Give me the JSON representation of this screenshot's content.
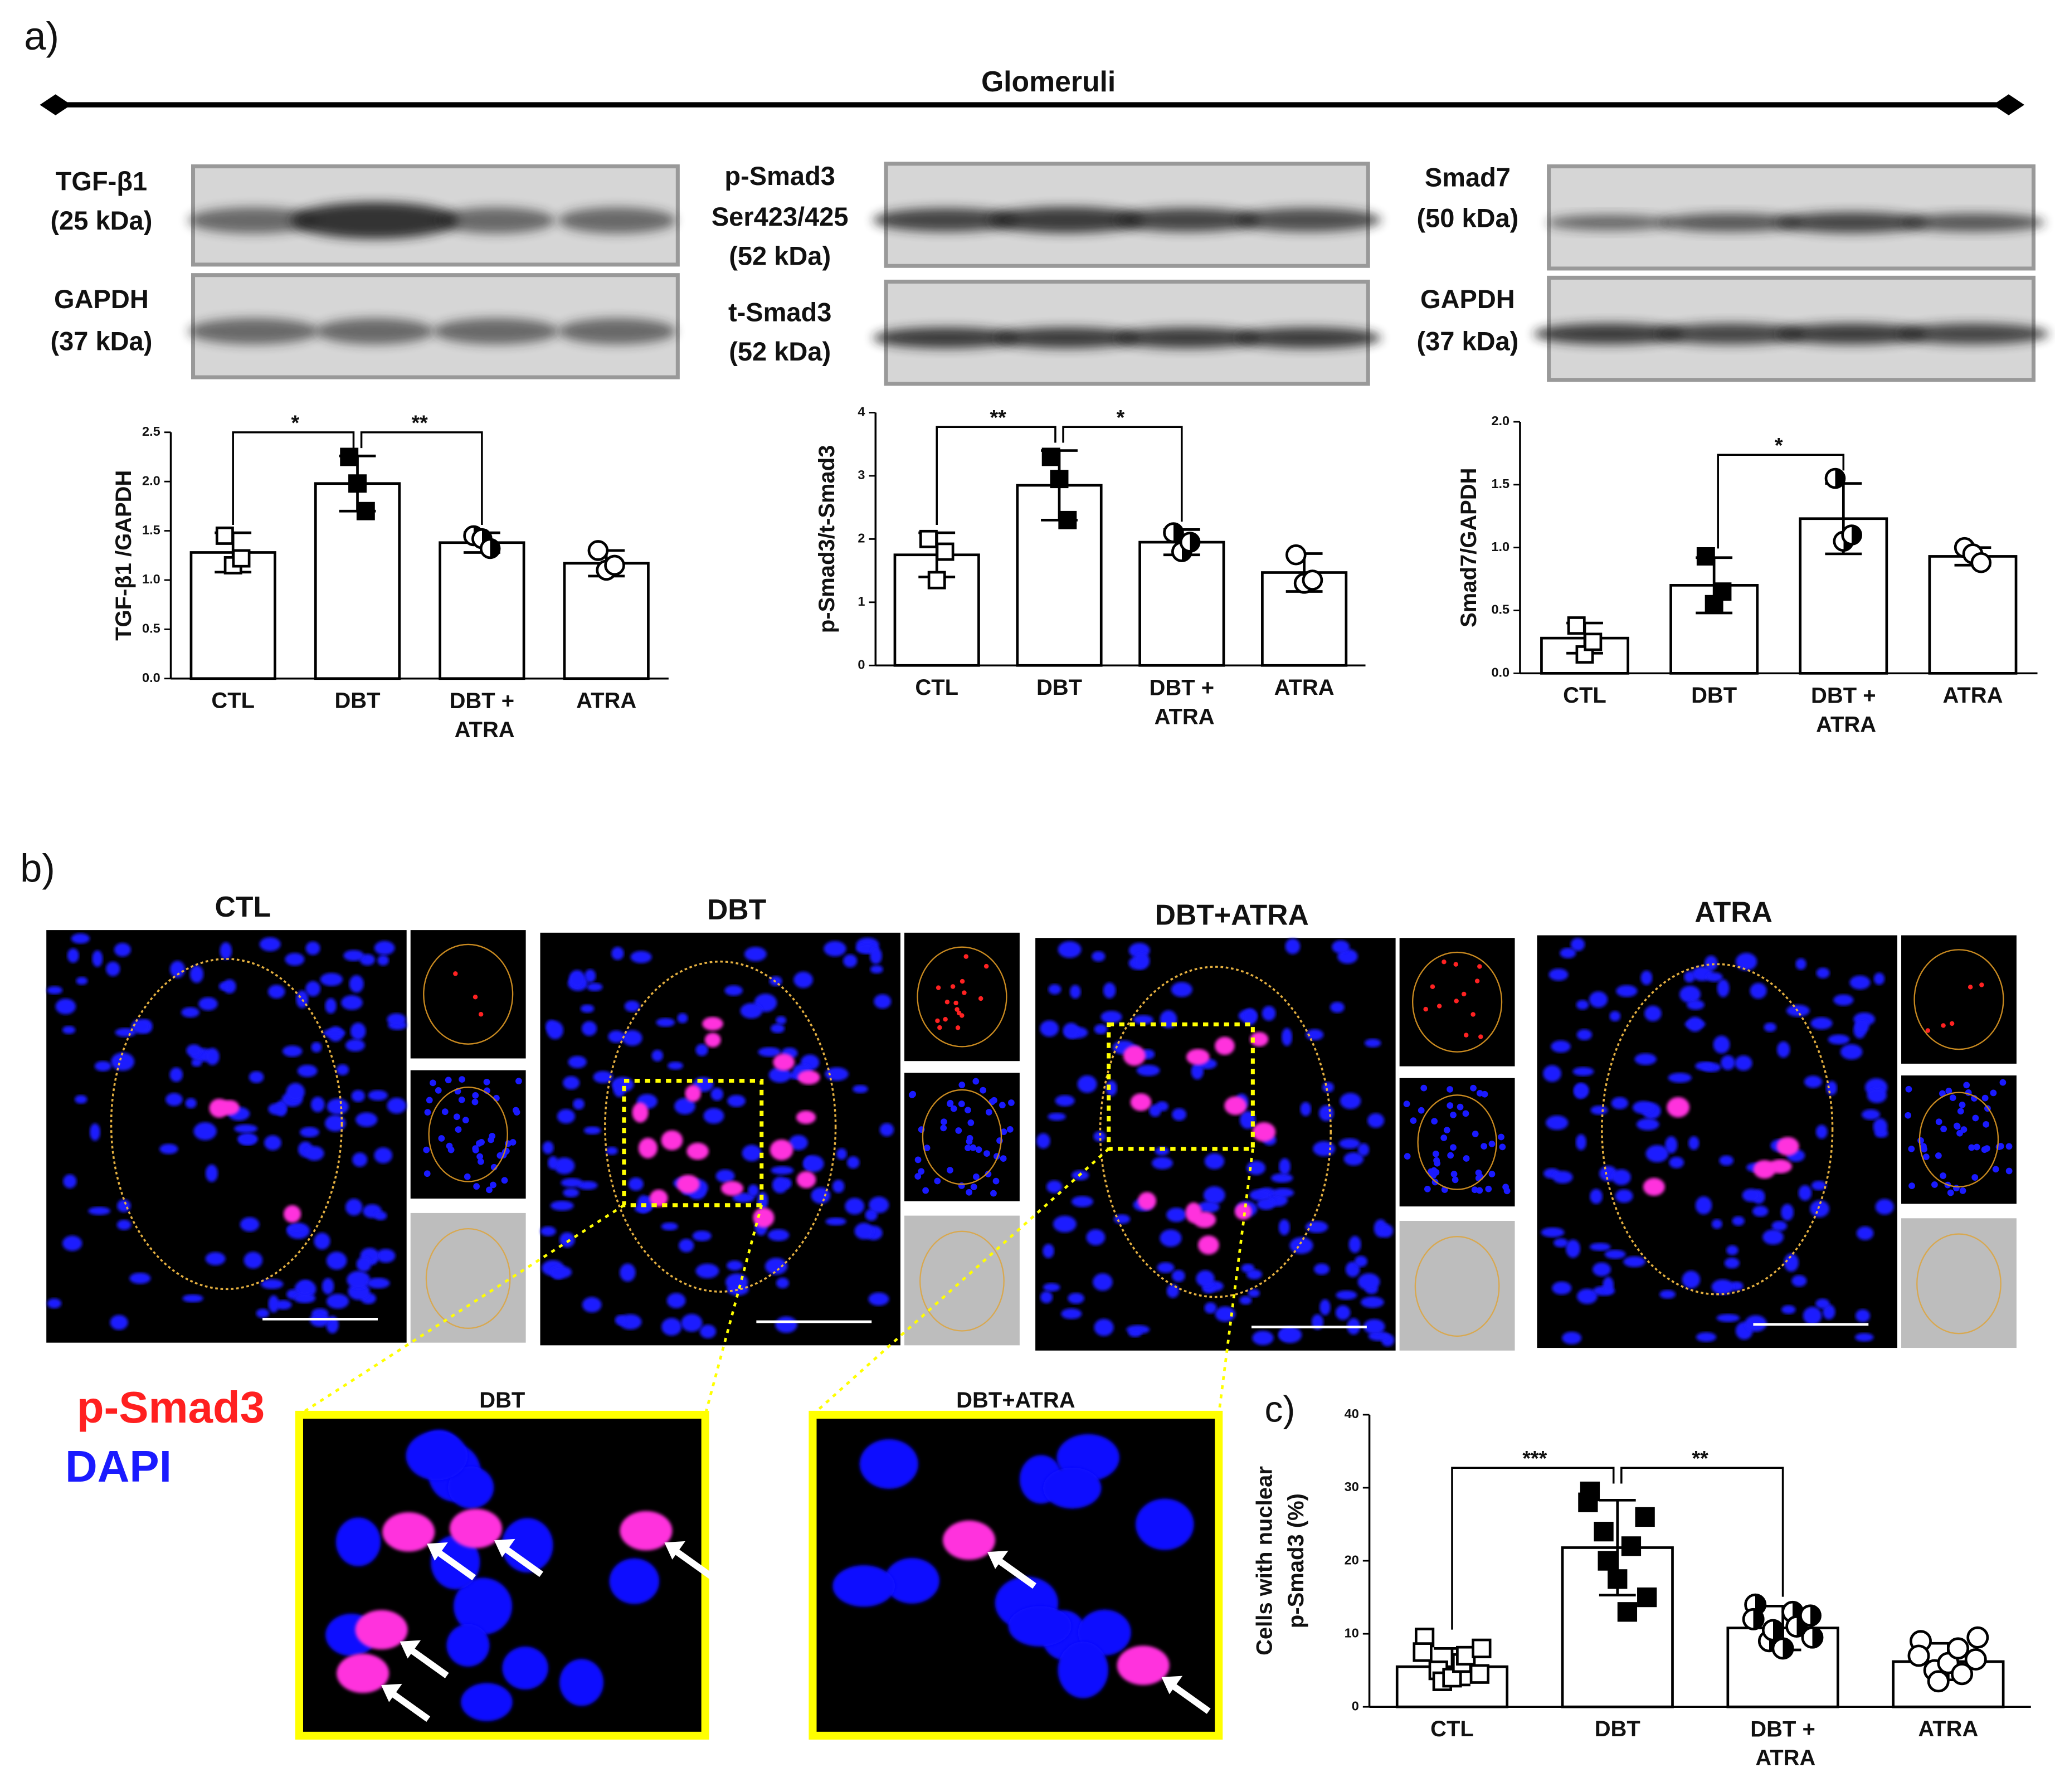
{
  "figure": {
    "panel_a": "a)",
    "panel_b": "b)",
    "header": "Glomeruli",
    "blots": [
      {
        "lines": [
          "TGF-β1",
          "(25 kDa)"
        ]
      },
      {
        "lines": [
          "GAPDH",
          "(37 kDa)"
        ]
      },
      {
        "lines": [
          "p-Smad3",
          "Ser423/425",
          "(52 kDa)"
        ]
      },
      {
        "lines": [
          "t-Smad3",
          "(52 kDa)"
        ]
      },
      {
        "lines": [
          "Smad7",
          "(50 kDa)"
        ]
      },
      {
        "lines": [
          "GAPDH",
          "(37 kDa)"
        ]
      }
    ],
    "image_titles": [
      "CTL",
      "DBT",
      "DBT+ATRA",
      "ATRA"
    ],
    "legend": [
      "p-Smad3",
      "DAPI"
    ],
    "zoom_titles": [
      "DBT",
      "DBT+ATRA"
    ]
  },
  "chart_data": [
    {
      "type": "bar",
      "ylabel": [
        "TGF-β1 /GAPDH"
      ],
      "categories": [
        "CTL",
        "DBT",
        "DBT + ATRA",
        "ATRA"
      ],
      "values": [
        1.28,
        1.98,
        1.38,
        1.17
      ],
      "errors": [
        0.2,
        0.28,
        0.1,
        0.13
      ],
      "points": [
        [
          1.45,
          1.15,
          1.22
        ],
        [
          2.25,
          1.98,
          1.7
        ],
        [
          1.45,
          1.42,
          1.32
        ],
        [
          1.3,
          1.1,
          1.15
        ]
      ],
      "markers": [
        "square-open",
        "square-filled",
        "circle-half",
        "circle-open"
      ],
      "color": "#ffffff",
      "ylim": [
        0,
        2.5
      ],
      "yticks": [
        {
          "value": 0,
          "label": "0.0"
        },
        0.5,
        {
          "value": 1,
          "label": "1.0"
        },
        1.5,
        {
          "value": 2,
          "label": "2.0"
        },
        2.5
      ],
      "brackets": [
        {
          "from": 0,
          "to": 1,
          "label": "*"
        },
        {
          "from": 1,
          "to": 2,
          "label": "**"
        }
      ]
    },
    {
      "type": "bar",
      "ylabel": [
        "p-Smad3/t-Smad3"
      ],
      "categories": [
        "CTL",
        "DBT",
        "DBT + ATRA",
        "ATRA"
      ],
      "values": [
        1.75,
        2.85,
        1.95,
        1.47
      ],
      "errors": [
        0.35,
        0.55,
        0.2,
        0.3
      ],
      "points": [
        [
          2.0,
          1.35,
          1.8
        ],
        [
          3.3,
          2.95,
          2.3
        ],
        [
          2.1,
          1.8,
          1.95
        ],
        [
          1.75,
          1.3,
          1.35
        ]
      ],
      "markers": [
        "square-open",
        "square-filled",
        "circle-half",
        "circle-open"
      ],
      "color": "#ffffff",
      "ylim": [
        0,
        4
      ],
      "yticks": [
        0,
        1,
        2,
        3,
        4
      ],
      "brackets": [
        {
          "from": 0,
          "to": 1,
          "label": "**"
        },
        {
          "from": 1,
          "to": 2,
          "label": "*"
        }
      ]
    },
    {
      "type": "bar",
      "ylabel": [
        "Smad7/GAPDH"
      ],
      "categories": [
        "CTL",
        "DBT",
        "DBT + ATRA",
        "ATRA"
      ],
      "values": [
        0.28,
        0.7,
        1.23,
        0.93
      ],
      "errors": [
        0.12,
        0.22,
        0.28,
        0.07
      ],
      "points": [
        [
          0.38,
          0.15,
          0.25
        ],
        [
          0.93,
          0.55,
          0.65
        ],
        [
          1.55,
          1.05,
          1.1
        ],
        [
          1.0,
          0.95,
          0.88
        ]
      ],
      "markers": [
        "square-open",
        "square-filled",
        "circle-half",
        "circle-open"
      ],
      "color": "#ffffff",
      "ylim": [
        0,
        2
      ],
      "yticks": [
        {
          "value": 0,
          "label": "0.0"
        },
        0.5,
        {
          "value": 1,
          "label": "1.0"
        },
        1.5,
        {
          "value": 2,
          "label": "2.0"
        }
      ],
      "brackets": [
        {
          "from": 1,
          "to": 2,
          "label": "*"
        }
      ]
    },
    {
      "type": "bar",
      "panel": "c)",
      "ylabel": [
        "Cells with nuclear",
        "p-Smad3 (%)"
      ],
      "categories": [
        "CTL",
        "DBT",
        "DBT + ATRA",
        "ATRA"
      ],
      "values": [
        5.5,
        21.8,
        10.8,
        6.2
      ],
      "errors": [
        2.5,
        6.5,
        3,
        2.5
      ],
      "points": [
        [
          9.5,
          7.5,
          5,
          3.5,
          4,
          6,
          7,
          8,
          4.5
        ],
        [
          29.5,
          28,
          24,
          20,
          17.5,
          13,
          22,
          15,
          26
        ],
        [
          14,
          12,
          9,
          10.5,
          8,
          13,
          11,
          9.5,
          12.5
        ],
        [
          9,
          7,
          5,
          3.5,
          6,
          8,
          4.5,
          9.5,
          6.5
        ]
      ],
      "markers": [
        "square-open",
        "square-filled",
        "circle-half",
        "circle-open"
      ],
      "color": "#ffffff",
      "ylim": [
        0,
        40
      ],
      "yticks": [
        0,
        10,
        20,
        30,
        40
      ],
      "brackets": [
        {
          "from": 0,
          "to": 1,
          "label": "***"
        },
        {
          "from": 1,
          "to": 2,
          "label": "**"
        }
      ]
    }
  ]
}
